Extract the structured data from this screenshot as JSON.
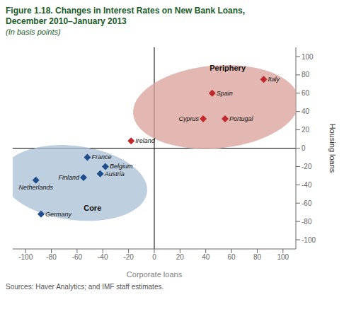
{
  "chart_data": {
    "type": "scatter",
    "title": [
      "Figure 1.18. Changes in Interest Rates on New Bank Loans,",
      "December 2010–January 2013"
    ],
    "subtitle": "(In basis points)",
    "x_label": "Corporate loans",
    "y_label": "Housing loans",
    "source": "Sources: Haver Analytics; and IMF staff estimates.",
    "title_color": "#1a5c2a",
    "source_color": "#555555",
    "xlim": [
      -110,
      110
    ],
    "ylim": [
      -110,
      110
    ],
    "xticks": [
      -100,
      -80,
      -60,
      -40,
      -20,
      0,
      20,
      40,
      60,
      80,
      100
    ],
    "yticks": [
      -100,
      -80,
      -60,
      -40,
      -20,
      0,
      20,
      40,
      60,
      80,
      100
    ],
    "grid": false,
    "series": [
      {
        "color": "#c0282d",
        "marker": "diamond",
        "region_color": "#d9a09a",
        "region": {
          "cx": 48,
          "cy": 45,
          "width": 130,
          "height": 90,
          "angle": 10
        },
        "points": [
          {
            "label": "Italy",
            "x": 85,
            "y": 75
          },
          {
            "label": "Spain",
            "x": 45,
            "y": 60
          },
          {
            "label": "Cyprus",
            "x": 38,
            "y": 32
          },
          {
            "label": "Portugal",
            "x": 55,
            "y": 32
          },
          {
            "label": "Ireland",
            "x": -18,
            "y": 8
          }
        ]
      },
      {
        "color": "#1f4e8c",
        "marker": "diamond",
        "region_color": "#a8bfd4",
        "region": {
          "cx": -62,
          "cy": -38,
          "width": 115,
          "height": 80,
          "angle": -15
        },
        "points": [
          {
            "label": "France",
            "x": -52,
            "y": -10
          },
          {
            "label": "Belgium",
            "x": -38,
            "y": -20
          },
          {
            "label": "Austria",
            "x": -42,
            "y": -28
          },
          {
            "label": "Finland",
            "x": -55,
            "y": -32
          },
          {
            "label": "Netherlands",
            "x": -92,
            "y": -35
          },
          {
            "label": "Germany",
            "x": -88,
            "y": -72
          }
        ]
      }
    ],
    "annotations": [
      {
        "text": "Periphery",
        "x": 57,
        "y": 88
      },
      {
        "text": "Core",
        "x": -48,
        "y": -65
      }
    ]
  }
}
